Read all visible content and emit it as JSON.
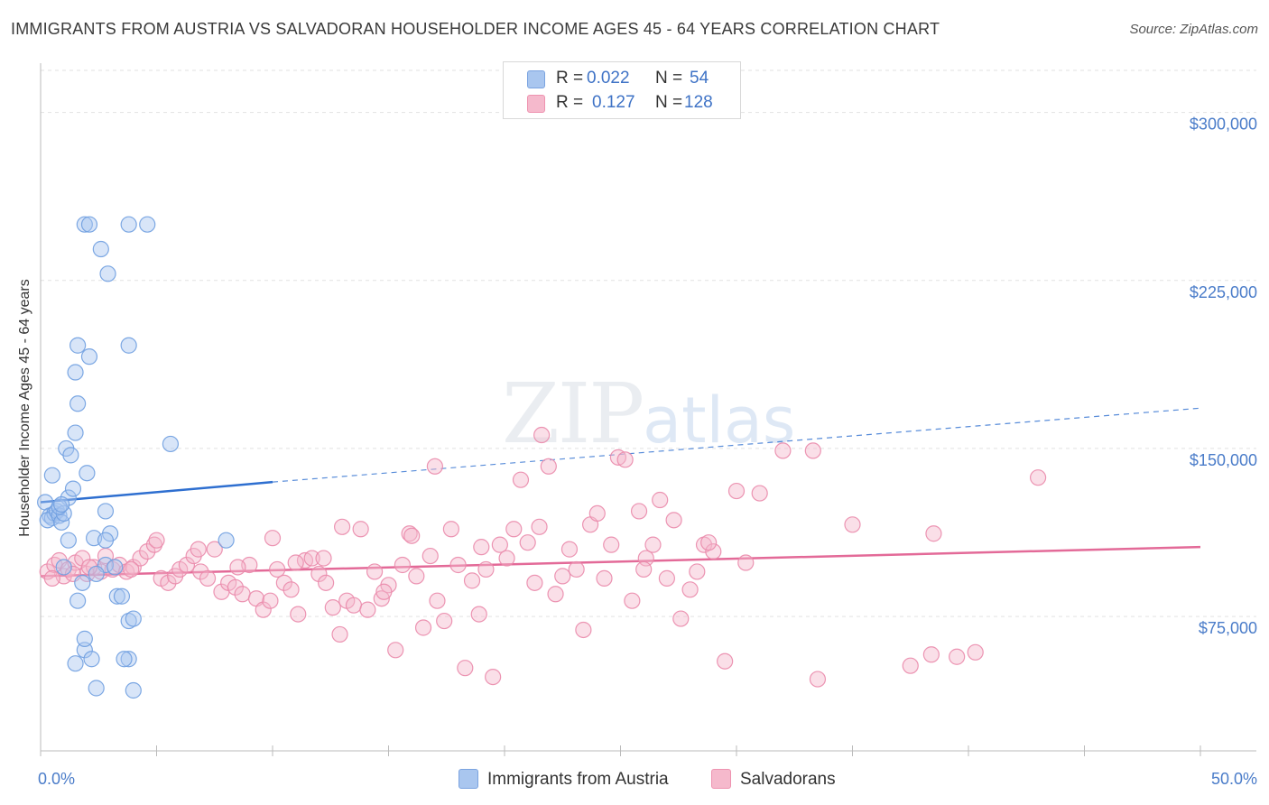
{
  "chart_data": {
    "type": "scatter",
    "title": "IMMIGRANTS FROM AUSTRIA VS SALVADORAN HOUSEHOLDER INCOME AGES 45 - 64 YEARS CORRELATION CHART",
    "source": "Source: ZipAtlas.com",
    "watermark": {
      "main": "ZIP",
      "sub": "atlas"
    },
    "xlabel": "",
    "ylabel": "Householder Income Ages 45 - 64 years",
    "xlim": [
      0,
      50
    ],
    "ylim": [
      15000,
      322000
    ],
    "x_tick_labels": {
      "left": "0.0%",
      "right": "50.0%"
    },
    "x_minor_ticks": [
      0,
      5,
      10,
      15,
      20,
      25,
      30,
      35,
      40,
      45,
      50
    ],
    "y_ticks": [
      {
        "value": 75000,
        "label": "$75,000"
      },
      {
        "value": 150000,
        "label": "$150,000"
      },
      {
        "value": 225000,
        "label": "$225,000"
      },
      {
        "value": 300000,
        "label": "$300,000"
      }
    ],
    "legend": {
      "rows": [
        {
          "r_label": "R =",
          "r_value": "0.022",
          "n_label": "N =",
          "n_value": "54",
          "color": "#a9c6ef",
          "border": "#7aa3e0"
        },
        {
          "r_label": "R =",
          "r_value": "0.127",
          "n_label": "N =",
          "n_value": "128",
          "color": "#f5b9cc",
          "border": "#ee93b0"
        }
      ]
    },
    "series": [
      {
        "name": "Immigrants from Austria",
        "color": "#a9c6ef",
        "stroke": "#6f9ee0",
        "trend": {
          "x0": 0,
          "y0": 126000,
          "x1": 10,
          "y1": 135000,
          "dash_to": 50,
          "dash_y": 168000,
          "line": "#2e6fd0"
        },
        "points": [
          [
            0.2,
            126000
          ],
          [
            0.4,
            120000
          ],
          [
            0.5,
            119000
          ],
          [
            0.6,
            121000
          ],
          [
            0.3,
            118000
          ],
          [
            0.7,
            122000
          ],
          [
            0.8,
            120000
          ],
          [
            0.9,
            117000
          ],
          [
            1.0,
            121000
          ],
          [
            0.5,
            138000
          ],
          [
            1.2,
            128000
          ],
          [
            1.4,
            132000
          ],
          [
            1.6,
            170000
          ],
          [
            1.1,
            150000
          ],
          [
            1.3,
            147000
          ],
          [
            1.5,
            157000
          ],
          [
            1.5,
            184000
          ],
          [
            1.6,
            196000
          ],
          [
            2.1,
            191000
          ],
          [
            1.9,
            250000
          ],
          [
            2.1,
            250000
          ],
          [
            2.0,
            139000
          ],
          [
            2.3,
            110000
          ],
          [
            2.6,
            239000
          ],
          [
            2.8,
            122000
          ],
          [
            2.9,
            228000
          ],
          [
            3.3,
            84000
          ],
          [
            3.5,
            84000
          ],
          [
            3.0,
            112000
          ],
          [
            2.8,
            98000
          ],
          [
            3.2,
            97000
          ],
          [
            3.8,
            56000
          ],
          [
            3.6,
            56000
          ],
          [
            4.0,
            42000
          ],
          [
            3.8,
            73000
          ],
          [
            2.4,
            94000
          ],
          [
            1.9,
            60000
          ],
          [
            1.9,
            65000
          ],
          [
            1.5,
            54000
          ],
          [
            2.2,
            56000
          ],
          [
            1.8,
            90000
          ],
          [
            1.6,
            82000
          ],
          [
            1.2,
            109000
          ],
          [
            2.8,
            109000
          ],
          [
            3.8,
            196000
          ],
          [
            3.8,
            250000
          ],
          [
            4.0,
            74000
          ],
          [
            4.6,
            250000
          ],
          [
            8.0,
            109000
          ],
          [
            5.6,
            152000
          ],
          [
            0.8,
            124000
          ],
          [
            0.9,
            125000
          ],
          [
            1.0,
            97000
          ],
          [
            2.4,
            43000
          ]
        ]
      },
      {
        "name": "Salvadorans",
        "color": "#f5b9cc",
        "stroke": "#ea8aab",
        "trend": {
          "x0": 0,
          "y0": 93000,
          "x1": 50,
          "y1": 106000,
          "line": "#e36a98"
        },
        "points": [
          [
            0.3,
            95000
          ],
          [
            0.6,
            98000
          ],
          [
            0.8,
            100000
          ],
          [
            1.0,
            93000
          ],
          [
            1.2,
            96000
          ],
          [
            1.5,
            99000
          ],
          [
            1.8,
            101000
          ],
          [
            2.0,
            94000
          ],
          [
            2.3,
            97000
          ],
          [
            2.6,
            95000
          ],
          [
            2.8,
            102000
          ],
          [
            3.1,
            96000
          ],
          [
            3.4,
            98000
          ],
          [
            3.7,
            95000
          ],
          [
            4.0,
            97000
          ],
          [
            4.3,
            101000
          ],
          [
            4.6,
            104000
          ],
          [
            4.9,
            107000
          ],
          [
            5.2,
            92000
          ],
          [
            5.5,
            90000
          ],
          [
            5.8,
            93000
          ],
          [
            6.0,
            96000
          ],
          [
            6.3,
            98000
          ],
          [
            6.6,
            102000
          ],
          [
            6.9,
            95000
          ],
          [
            7.2,
            92000
          ],
          [
            7.5,
            105000
          ],
          [
            7.8,
            86000
          ],
          [
            8.1,
            90000
          ],
          [
            8.4,
            88000
          ],
          [
            8.7,
            85000
          ],
          [
            9.0,
            98000
          ],
          [
            9.3,
            83000
          ],
          [
            9.6,
            78000
          ],
          [
            9.9,
            82000
          ],
          [
            10.2,
            96000
          ],
          [
            10.5,
            90000
          ],
          [
            10.8,
            87000
          ],
          [
            11.1,
            76000
          ],
          [
            11.4,
            100000
          ],
          [
            11.7,
            101000
          ],
          [
            12.0,
            94000
          ],
          [
            12.3,
            90000
          ],
          [
            12.6,
            79000
          ],
          [
            12.9,
            67000
          ],
          [
            13.2,
            82000
          ],
          [
            13.5,
            80000
          ],
          [
            13.8,
            114000
          ],
          [
            14.1,
            78000
          ],
          [
            14.4,
            95000
          ],
          [
            14.7,
            83000
          ],
          [
            15.0,
            89000
          ],
          [
            15.3,
            60000
          ],
          [
            15.6,
            98000
          ],
          [
            15.9,
            112000
          ],
          [
            16.2,
            93000
          ],
          [
            16.5,
            70000
          ],
          [
            16.8,
            102000
          ],
          [
            17.1,
            82000
          ],
          [
            17.4,
            73000
          ],
          [
            17.7,
            114000
          ],
          [
            18.0,
            98000
          ],
          [
            18.3,
            52000
          ],
          [
            18.6,
            91000
          ],
          [
            18.9,
            76000
          ],
          [
            19.2,
            96000
          ],
          [
            19.5,
            48000
          ],
          [
            19.8,
            107000
          ],
          [
            20.1,
            101000
          ],
          [
            20.4,
            114000
          ],
          [
            20.7,
            136000
          ],
          [
            21.0,
            108000
          ],
          [
            21.3,
            90000
          ],
          [
            21.6,
            156000
          ],
          [
            21.9,
            142000
          ],
          [
            22.2,
            85000
          ],
          [
            22.5,
            93000
          ],
          [
            22.8,
            105000
          ],
          [
            23.1,
            96000
          ],
          [
            23.4,
            69000
          ],
          [
            23.7,
            116000
          ],
          [
            24.0,
            121000
          ],
          [
            24.3,
            92000
          ],
          [
            24.6,
            107000
          ],
          [
            24.9,
            146000
          ],
          [
            25.2,
            145000
          ],
          [
            25.5,
            82000
          ],
          [
            25.8,
            122000
          ],
          [
            26.1,
            101000
          ],
          [
            26.4,
            107000
          ],
          [
            26.7,
            127000
          ],
          [
            27.0,
            92000
          ],
          [
            27.3,
            118000
          ],
          [
            27.6,
            74000
          ],
          [
            28.0,
            87000
          ],
          [
            28.3,
            95000
          ],
          [
            28.6,
            107000
          ],
          [
            29.0,
            104000
          ],
          [
            29.5,
            55000
          ],
          [
            30.0,
            131000
          ],
          [
            30.4,
            99000
          ],
          [
            31.0,
            130000
          ],
          [
            32.0,
            149000
          ],
          [
            33.3,
            149000
          ],
          [
            33.5,
            47000
          ],
          [
            35.0,
            116000
          ],
          [
            37.5,
            53000
          ],
          [
            38.5,
            112000
          ],
          [
            38.4,
            58000
          ],
          [
            39.5,
            57000
          ],
          [
            40.3,
            59000
          ],
          [
            43.0,
            137000
          ],
          [
            10.0,
            110000
          ],
          [
            13.0,
            115000
          ],
          [
            12.2,
            101000
          ],
          [
            14.8,
            86000
          ],
          [
            17.0,
            142000
          ],
          [
            19.0,
            106000
          ],
          [
            8.5,
            97000
          ],
          [
            6.8,
            105000
          ],
          [
            5.0,
            109000
          ],
          [
            3.9,
            96000
          ],
          [
            2.1,
            97000
          ],
          [
            1.4,
            94000
          ],
          [
            0.5,
            92000
          ],
          [
            16.0,
            111000
          ],
          [
            21.5,
            115000
          ],
          [
            26.0,
            96000
          ],
          [
            28.8,
            108000
          ],
          [
            11.0,
            99000
          ]
        ]
      }
    ],
    "bottom_legend": [
      {
        "label": "Immigrants from Austria"
      },
      {
        "label": "Salvadorans"
      }
    ]
  }
}
